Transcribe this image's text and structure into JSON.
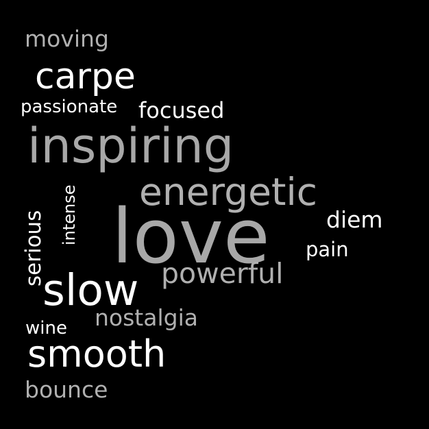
{
  "word_cloud": {
    "background": "#000000",
    "colors": {
      "white": "#ffffff",
      "gray": "#b0b0b0"
    },
    "words": {
      "love": "love",
      "inspiring": "inspiring",
      "energetic": "energetic",
      "slow": "slow",
      "smooth": "smooth",
      "carpe": "carpe",
      "powerful": "powerful",
      "focused": "focused",
      "moving": "moving",
      "diem": "diem",
      "nostalgia": "nostalgia",
      "bounce": "bounce",
      "serious": "serious",
      "pain": "pain",
      "passionate": "passionate",
      "intense": "intense",
      "wine": "wine"
    }
  }
}
